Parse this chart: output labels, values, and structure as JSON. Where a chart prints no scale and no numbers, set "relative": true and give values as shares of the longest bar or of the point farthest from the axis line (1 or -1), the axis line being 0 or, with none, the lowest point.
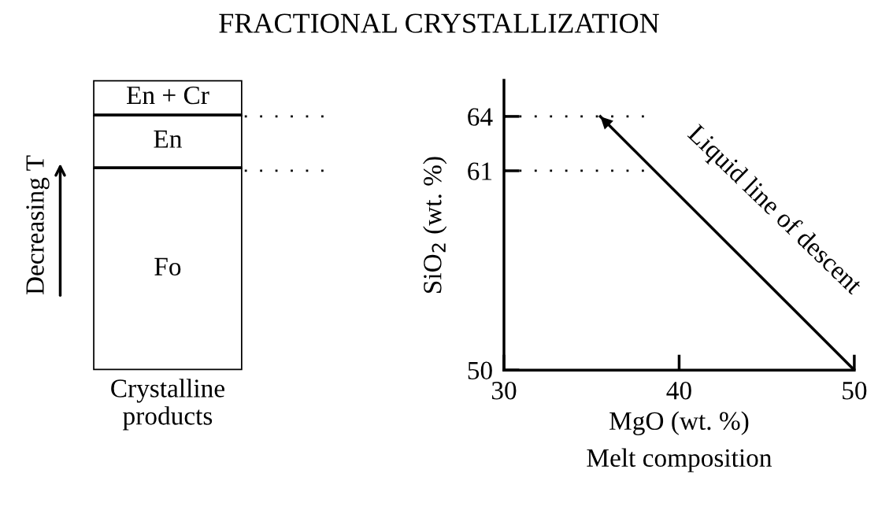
{
  "chart_data": [
    {
      "type": "bar",
      "stacked": true,
      "relative": true,
      "title": "FRACTIONAL CRYSTALLIZATION",
      "categories": [
        "Crystalline\nproducts"
      ],
      "ylabel": "Decreasing T",
      "series": [
        {
          "name": "Fo",
          "color": "#ffffff",
          "values": [
            0.698
          ]
        },
        {
          "name": "En",
          "color": "#ffffff",
          "values": [
            0.182
          ]
        },
        {
          "name": "En + Cr",
          "color": "#ffffff",
          "values": [
            0.12
          ]
        }
      ]
    },
    {
      "type": "line",
      "xlabel": "MgO (wt. %)",
      "ylabel": "SiO$_{2}$ (wt. %)",
      "xlim": [
        30,
        50
      ],
      "ylim": [
        50,
        66
      ],
      "xticks": [
        30,
        40,
        50
      ],
      "yticks": [
        50,
        61,
        64
      ],
      "series": [
        {
          "color": "#000000",
          "x": [
            50,
            35.5
          ],
          "values": [
            50,
            64
          ]
        }
      ],
      "ref_lines": [
        {
          "axis": "y",
          "value": 64,
          "line_style": "dotted",
          "color": "#000000"
        },
        {
          "axis": "y",
          "value": 61,
          "line_style": "dotted",
          "color": "#000000"
        }
      ],
      "annotations": [
        "Liquid line of descent",
        "Melt composition"
      ]
    }
  ]
}
